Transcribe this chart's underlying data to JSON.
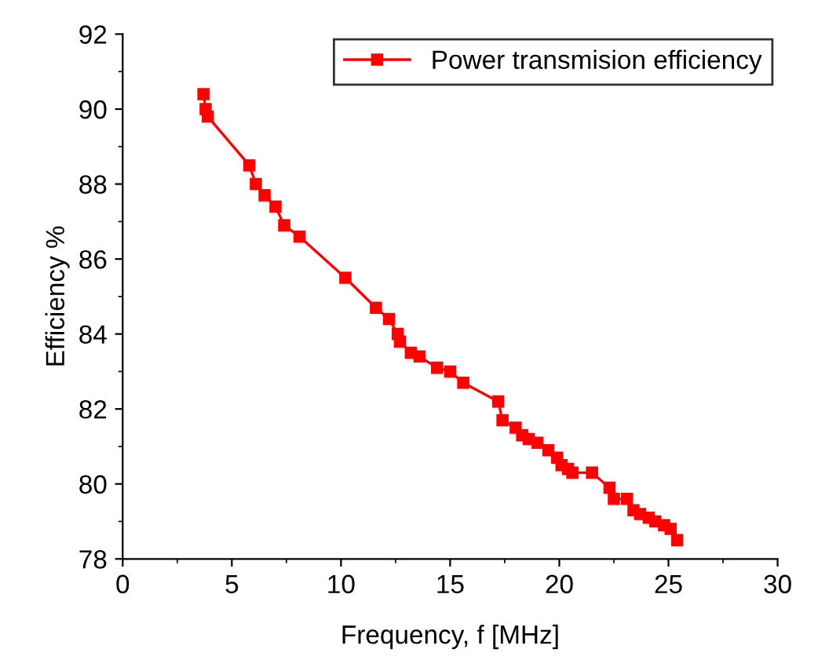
{
  "chart_data": {
    "type": "line",
    "xlabel": "Frequency, f [MHz]",
    "ylabel": "Efficiency %",
    "xlim": [
      0,
      30
    ],
    "ylim": [
      78,
      92
    ],
    "xticks": [
      0,
      5,
      10,
      15,
      20,
      25,
      30
    ],
    "yticks": [
      78,
      80,
      82,
      84,
      86,
      88,
      90,
      92
    ],
    "grid": false,
    "legend": "top right",
    "marker": "square",
    "line_style": "solid",
    "series": [
      {
        "name": "Power transmision efficiency",
        "color": "#ff0000",
        "x": [
          3.7,
          3.8,
          3.9,
          5.8,
          6.1,
          6.5,
          7.0,
          7.4,
          8.1,
          10.2,
          11.6,
          12.2,
          12.6,
          12.7,
          13.2,
          13.6,
          14.4,
          15.0,
          15.6,
          17.2,
          17.4,
          18.0,
          18.3,
          18.6,
          19.0,
          19.5,
          19.9,
          20.1,
          20.4,
          20.6,
          21.5,
          22.3,
          22.5,
          23.1,
          23.4,
          23.7,
          24.1,
          24.4,
          24.8,
          25.1,
          25.4
        ],
        "values": [
          90.4,
          90.0,
          89.8,
          88.5,
          88.0,
          87.7,
          87.4,
          86.9,
          86.6,
          85.5,
          84.7,
          84.4,
          84.0,
          83.8,
          83.5,
          83.4,
          83.1,
          83.0,
          82.7,
          82.2,
          81.7,
          81.5,
          81.3,
          81.2,
          81.1,
          80.9,
          80.7,
          80.5,
          80.4,
          80.3,
          80.3,
          79.9,
          79.6,
          79.6,
          79.3,
          79.2,
          79.1,
          79.0,
          78.9,
          78.8,
          78.5
        ]
      }
    ]
  }
}
